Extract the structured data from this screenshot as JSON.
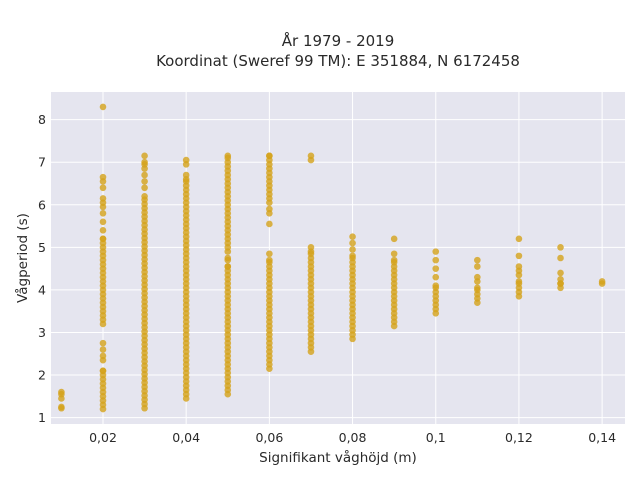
{
  "chart_data": {
    "type": "scatter",
    "title_line1": "År 1979 - 2019",
    "title_line2": "Koordinat (Sweref 99 TM): E 351884, N 6172458",
    "xlabel": "Signifikant våghöjd (m)",
    "ylabel": "Vågperiod (s)",
    "xlim": [
      0.0075,
      0.1455
    ],
    "ylim": [
      0.85,
      8.65
    ],
    "x_ticks": [
      {
        "value": 0.02,
        "label": "0,02"
      },
      {
        "value": 0.04,
        "label": "0,04"
      },
      {
        "value": 0.06,
        "label": "0,06"
      },
      {
        "value": 0.08,
        "label": "0,08"
      },
      {
        "value": 0.1,
        "label": "0,1"
      },
      {
        "value": 0.12,
        "label": "0,12"
      },
      {
        "value": 0.14,
        "label": "0,14"
      }
    ],
    "y_ticks": [
      {
        "value": 1,
        "label": "1"
      },
      {
        "value": 2,
        "label": "2"
      },
      {
        "value": 3,
        "label": "3"
      },
      {
        "value": 4,
        "label": "4"
      },
      {
        "value": 5,
        "label": "5"
      },
      {
        "value": 6,
        "label": "6"
      },
      {
        "value": 7,
        "label": "7"
      },
      {
        "value": 8,
        "label": "8"
      }
    ],
    "grid": true,
    "legend": "none",
    "colors": {
      "marker": "#d4a21a",
      "plot_bg": "#e5e5ef",
      "grid": "#ffffff"
    },
    "points": [
      {
        "x": 0.01,
        "ymin": 1.45,
        "ymax": 1.6,
        "singles": [
          1.22,
          1.25
        ]
      },
      {
        "x": 0.02,
        "ymin": 1.2,
        "ymax": 2.1,
        "singles": [
          2.35,
          2.45,
          2.6,
          2.75
        ]
      },
      {
        "x": 0.02,
        "ymin": 3.4,
        "ymax": 5.2,
        "singles": [
          3.2,
          3.3,
          5.4,
          5.6,
          5.8,
          5.95,
          6.05,
          6.15,
          6.4,
          6.55,
          6.65,
          8.3
        ]
      },
      {
        "x": 0.03,
        "ymin": 1.22,
        "ymax": 6.2,
        "singles": [
          6.4,
          6.55,
          6.7,
          6.85,
          6.95,
          7.0,
          7.15
        ]
      },
      {
        "x": 0.04,
        "ymin": 1.45,
        "ymax": 6.6,
        "singles": [
          6.7,
          6.95,
          7.05
        ]
      },
      {
        "x": 0.05,
        "ymin": 1.55,
        "ymax": 4.55,
        "singles": [
          4.7,
          4.75
        ]
      },
      {
        "x": 0.05,
        "ymin": 4.9,
        "ymax": 7.15,
        "singles": []
      },
      {
        "x": 0.06,
        "ymin": 2.15,
        "ymax": 4.7,
        "singles": [
          4.85,
          5.55,
          5.8
        ]
      },
      {
        "x": 0.06,
        "ymin": 6.05,
        "ymax": 7.15,
        "singles": [
          5.9
        ]
      },
      {
        "x": 0.07,
        "ymin": 2.55,
        "ymax": 4.9,
        "singles": [
          5.0,
          7.05,
          7.15
        ]
      },
      {
        "x": 0.08,
        "ymin": 2.85,
        "ymax": 4.8,
        "singles": [
          4.95,
          5.1,
          5.25
        ]
      },
      {
        "x": 0.09,
        "ymin": 3.15,
        "ymax": 4.7,
        "singles": [
          4.85,
          5.2
        ]
      },
      {
        "x": 0.1,
        "ymin": 3.45,
        "ymax": 4.1,
        "singles": [
          4.3,
          4.5,
          4.7,
          4.9
        ]
      },
      {
        "x": 0.11,
        "ymin": 3.7,
        "ymax": 4.05,
        "singles": [
          4.2,
          4.3,
          4.55,
          4.7
        ]
      },
      {
        "x": 0.12,
        "ymin": 3.85,
        "ymax": 4.2,
        "singles": [
          4.35,
          4.45,
          4.55,
          4.8,
          5.2
        ]
      },
      {
        "x": 0.13,
        "ymin": 4.05,
        "ymax": 4.15,
        "singles": [
          4.25,
          4.4,
          4.75,
          5.0
        ]
      },
      {
        "x": 0.14,
        "ymin": 4.15,
        "ymax": 4.2,
        "singles": []
      }
    ]
  }
}
